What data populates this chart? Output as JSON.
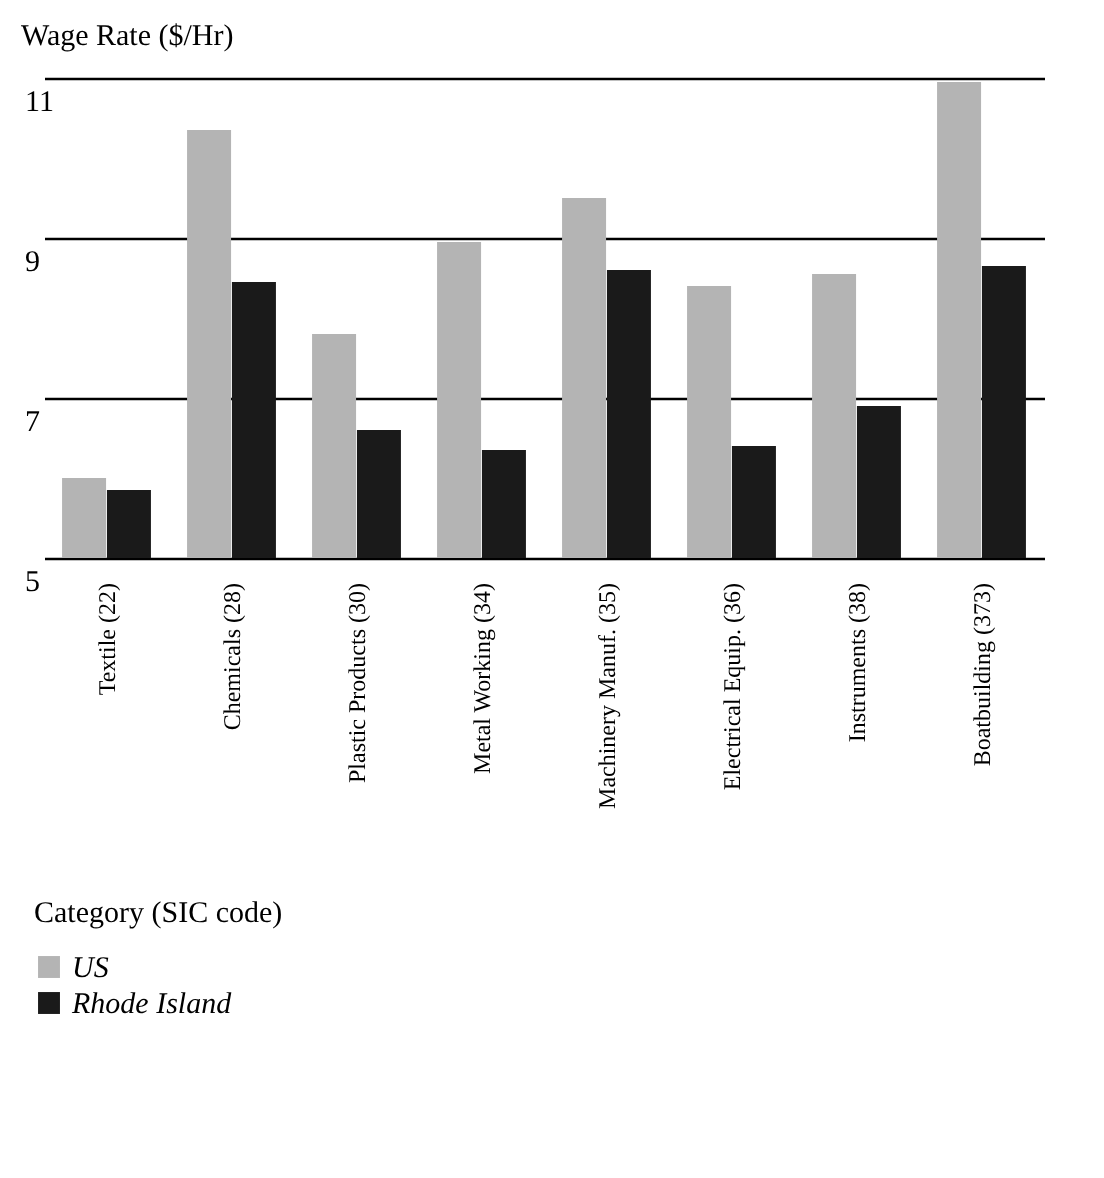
{
  "chart_data": {
    "type": "bar",
    "ylabel": "Wage Rate ($/Hr)",
    "legend_title": "Category (SIC code)",
    "categories": [
      "Textile (22)",
      "Chemicals (28)",
      "Plastic Products (30)",
      "Metal Working (34)",
      "Machinery Manuf. (35)",
      "Electrical Equip. (36)",
      "Instruments (38)",
      "Boatbuilding (373)"
    ],
    "series": [
      {
        "name": "US",
        "color": "#b4b4b4",
        "values": [
          6.0,
          10.35,
          7.8,
          8.95,
          9.5,
          8.4,
          8.55,
          10.95
        ]
      },
      {
        "name": "Rhode Island",
        "color": "#1a1a1a",
        "values": [
          5.85,
          8.45,
          6.6,
          6.35,
          8.6,
          6.4,
          6.9,
          8.65
        ]
      }
    ],
    "ylim": [
      5,
      11
    ],
    "yticks": [
      5,
      7,
      9,
      11
    ],
    "grid": "y",
    "legend": "bottom left"
  }
}
